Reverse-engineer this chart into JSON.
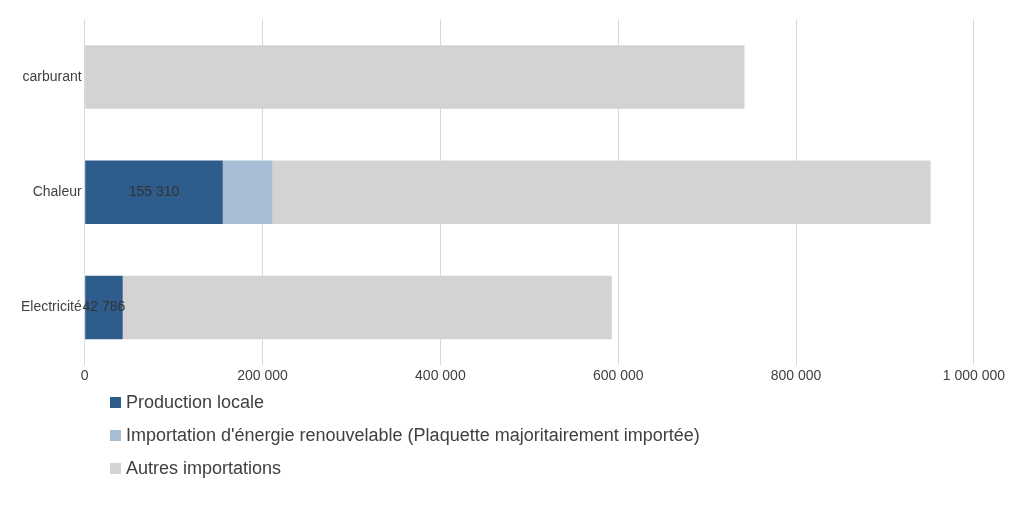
{
  "chart_data": {
    "type": "bar",
    "orientation": "horizontal",
    "stacked": true,
    "categories": [
      "carburant",
      "Chaleur",
      "Electricité"
    ],
    "series": [
      {
        "name": "Production locale",
        "color": "#2e5c8c",
        "values": [
          null,
          155310,
          42786
        ],
        "value_labels": [
          null,
          "155 310",
          "42 786"
        ]
      },
      {
        "name": "Importation d'énergie renouvelable (Plaquette majoritairement importée)",
        "color": "#a6bdd4",
        "values": [
          null,
          56000,
          null
        ]
      },
      {
        "name": "Autres importations",
        "color": "#d3d3d3",
        "values": [
          742000,
          740000,
          550000
        ]
      }
    ],
    "xlim": [
      0,
      1000000
    ],
    "xticks": [
      0,
      {
        "value": 200000,
        "label": "200 000"
      },
      {
        "value": 400000,
        "label": "400 000"
      },
      {
        "value": 600000,
        "label": "600 000"
      },
      {
        "value": 800000,
        "label": "800 000"
      },
      {
        "value": 1000000,
        "label": "1 000 000"
      }
    ],
    "grid": "x",
    "legend": "bottom"
  }
}
